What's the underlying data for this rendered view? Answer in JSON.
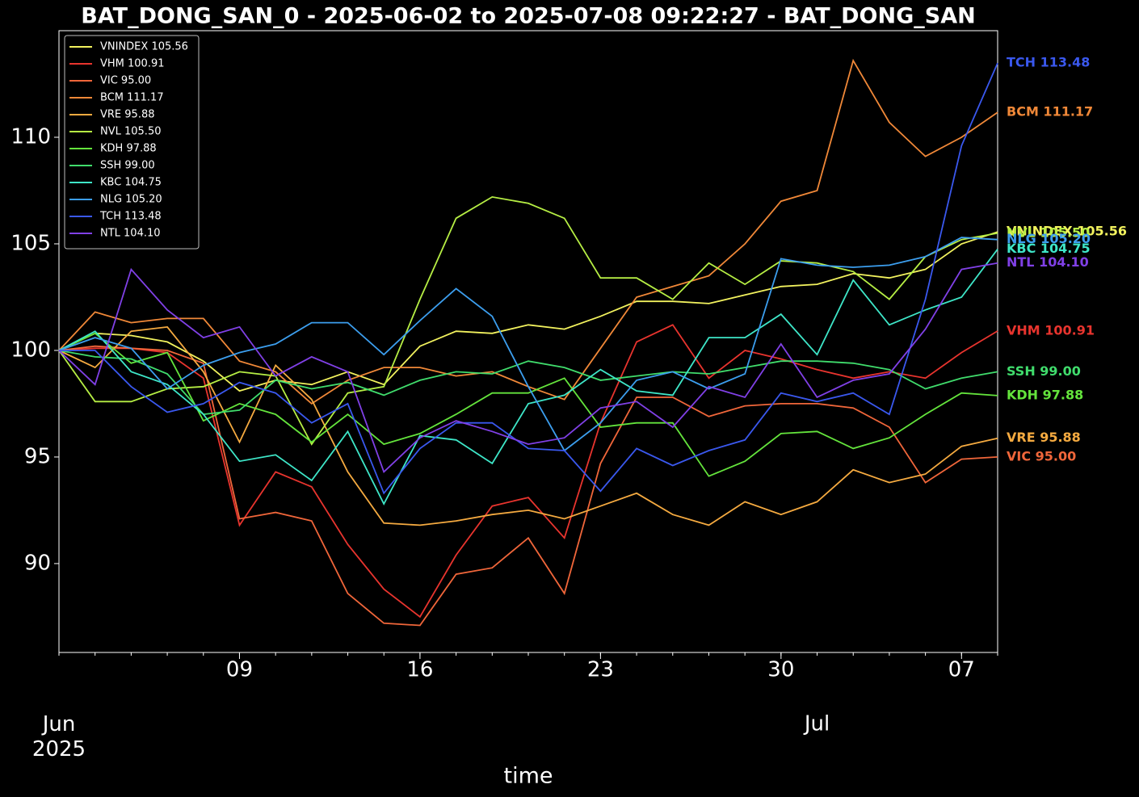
{
  "chart_data": {
    "type": "line",
    "title": "BAT_DONG_SAN_0 - 2025-06-02 to 2025-07-08 09:22:27 - BAT_DONG_SAN",
    "xlabel": "time",
    "x": [
      "2025-06-02",
      "2025-06-03",
      "2025-06-04",
      "2025-06-05",
      "2025-06-06",
      "2025-06-09",
      "2025-06-10",
      "2025-06-11",
      "2025-06-12",
      "2025-06-13",
      "2025-06-16",
      "2025-06-17",
      "2025-06-18",
      "2025-06-19",
      "2025-06-20",
      "2025-06-23",
      "2025-06-24",
      "2025-06-25",
      "2025-06-26",
      "2025-06-27",
      "2025-06-30",
      "2025-07-01",
      "2025-07-02",
      "2025-07-03",
      "2025-07-04",
      "2025-07-07",
      "2025-07-08"
    ],
    "xticks": [
      {
        "value": "2025-06-09",
        "label": "09"
      },
      {
        "value": "2025-06-16",
        "label": "16"
      },
      {
        "value": "2025-06-23",
        "label": "23"
      },
      {
        "value": "2025-06-30",
        "label": "30"
      },
      {
        "value": "2025-07-07",
        "label": "07"
      }
    ],
    "xticks_secondary": [
      {
        "value": "2025-06-02",
        "label": "Jun\n2025"
      },
      {
        "value": "2025-07-01",
        "label": "Jul"
      }
    ],
    "ylim": [
      85.83,
      115.0
    ],
    "yticks": [
      90,
      95,
      100,
      105,
      110
    ],
    "legend": "upper left",
    "series": [
      {
        "name": "VNINDEX 105.56",
        "color": "#f2f25e",
        "values": [
          100,
          100.8,
          100.7,
          100.4,
          99.5,
          98.1,
          98.6,
          98.4,
          99.0,
          98.4,
          100.2,
          100.9,
          100.8,
          101.2,
          101.0,
          101.6,
          102.3,
          102.3,
          102.2,
          102.6,
          103.0,
          103.1,
          103.6,
          103.4,
          103.8,
          105.0,
          105.56
        ]
      },
      {
        "name": "VHM 100.91",
        "color": "#e8342e",
        "values": [
          100,
          100.1,
          100.1,
          99.9,
          98.7,
          91.8,
          94.3,
          93.6,
          90.9,
          88.8,
          87.5,
          90.4,
          92.7,
          93.1,
          91.2,
          96.6,
          100.4,
          101.2,
          98.7,
          100.0,
          99.6,
          99.1,
          98.7,
          99.0,
          98.7,
          99.9,
          100.91
        ]
      },
      {
        "name": "VIC 95.00",
        "color": "#f0663a",
        "values": [
          100,
          100.2,
          100.1,
          100.0,
          99.4,
          92.1,
          92.4,
          92.0,
          88.6,
          87.2,
          87.1,
          89.5,
          89.8,
          91.2,
          88.6,
          94.7,
          97.8,
          97.8,
          96.9,
          97.4,
          97.5,
          97.5,
          97.3,
          96.4,
          93.8,
          94.9,
          95.0
        ]
      },
      {
        "name": "BCM 111.17",
        "color": "#f08838",
        "values": [
          100,
          101.8,
          101.3,
          101.5,
          101.5,
          99.5,
          99.0,
          97.5,
          98.6,
          99.2,
          99.2,
          98.8,
          99.0,
          98.3,
          97.7,
          100.1,
          102.5,
          103.0,
          103.5,
          105.0,
          107.0,
          107.5,
          113.6,
          110.7,
          109.1,
          110.0,
          111.17
        ]
      },
      {
        "name": "VRE 95.88",
        "color": "#f5aa40",
        "values": [
          100,
          99.2,
          100.9,
          101.1,
          99.0,
          95.7,
          99.3,
          97.7,
          94.3,
          91.9,
          91.8,
          92.0,
          92.3,
          92.5,
          92.1,
          92.7,
          93.3,
          92.3,
          91.8,
          92.9,
          92.3,
          92.9,
          94.4,
          93.8,
          94.2,
          95.5,
          95.88
        ]
      },
      {
        "name": "NVL 105.50",
        "color": "#b6ee44",
        "values": [
          100,
          97.6,
          97.6,
          98.2,
          98.3,
          99.0,
          98.8,
          95.6,
          98.0,
          98.3,
          102.4,
          106.2,
          107.2,
          106.9,
          106.2,
          103.4,
          103.4,
          102.4,
          104.1,
          103.1,
          104.2,
          104.1,
          103.7,
          102.4,
          104.4,
          105.2,
          105.5
        ]
      },
      {
        "name": "KDH 97.88",
        "color": "#64e43c",
        "values": [
          100,
          100.8,
          99.4,
          99.9,
          96.7,
          97.5,
          97.0,
          95.7,
          97.0,
          95.6,
          96.1,
          97.0,
          98.0,
          98.0,
          98.7,
          96.4,
          96.6,
          96.6,
          94.1,
          94.8,
          96.1,
          96.2,
          95.4,
          95.9,
          97.0,
          98.0,
          97.88
        ]
      },
      {
        "name": "SSH 99.00",
        "color": "#40dc6c",
        "values": [
          100,
          99.7,
          99.6,
          98.9,
          97.0,
          97.2,
          98.6,
          98.2,
          98.5,
          97.9,
          98.6,
          99.0,
          98.9,
          99.5,
          99.2,
          98.6,
          98.8,
          99.0,
          98.9,
          99.2,
          99.5,
          99.5,
          99.4,
          99.1,
          98.2,
          98.7,
          99.0
        ]
      },
      {
        "name": "KBC 104.75",
        "color": "#3ee6c8",
        "values": [
          100,
          100.9,
          99.0,
          98.4,
          97.0,
          94.8,
          95.1,
          93.9,
          96.2,
          92.8,
          96.0,
          95.8,
          94.7,
          97.5,
          97.9,
          99.1,
          98.1,
          97.9,
          100.6,
          100.6,
          101.7,
          99.8,
          103.3,
          101.2,
          101.9,
          102.5,
          104.75
        ]
      },
      {
        "name": "NLG 105.20",
        "color": "#3c9eee",
        "values": [
          100,
          100.6,
          100.1,
          98.2,
          99.3,
          99.9,
          100.3,
          101.3,
          101.3,
          99.8,
          101.4,
          102.9,
          101.6,
          98.3,
          95.3,
          96.6,
          98.6,
          99.0,
          98.2,
          98.9,
          104.3,
          104.0,
          103.9,
          104.0,
          104.4,
          105.3,
          105.2
        ]
      },
      {
        "name": "TCH 113.48",
        "color": "#3a58ee",
        "values": [
          100,
          100.0,
          98.3,
          97.1,
          97.5,
          98.5,
          98.0,
          96.6,
          97.5,
          93.3,
          95.4,
          96.6,
          96.6,
          95.4,
          95.3,
          93.4,
          95.4,
          94.6,
          95.3,
          95.8,
          98.0,
          97.6,
          98.0,
          97.0,
          102.4,
          109.6,
          113.48
        ]
      },
      {
        "name": "NTL 104.10",
        "color": "#8040e6",
        "values": [
          100,
          98.4,
          103.8,
          101.9,
          100.6,
          101.1,
          98.8,
          99.7,
          99.0,
          94.3,
          95.9,
          96.7,
          96.2,
          95.6,
          95.9,
          97.3,
          97.6,
          96.4,
          98.3,
          97.8,
          100.3,
          97.8,
          98.6,
          98.9,
          101.0,
          103.8,
          104.1
        ]
      }
    ]
  }
}
